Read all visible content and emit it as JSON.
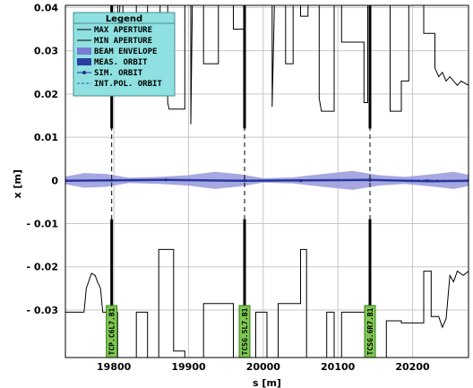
{
  "chart_data": {
    "type": "line",
    "xlabel": "s [m]",
    "ylabel": "x [m]",
    "xlim": [
      19735,
      20275
    ],
    "ylim": [
      -0.041,
      0.0405
    ],
    "x_ticks": [
      {
        "value": 19800,
        "label": "19800"
      },
      {
        "value": 19900,
        "label": "19900"
      },
      {
        "value": 20000,
        "label": "20000"
      },
      {
        "value": 20100,
        "label": "20100"
      },
      {
        "value": 20200,
        "label": "20200"
      }
    ],
    "y_ticks": [
      {
        "value": 0.04,
        "label": "0.04"
      },
      {
        "value": 0.03,
        "label": "0.03"
      },
      {
        "value": 0.02,
        "label": "0.02"
      },
      {
        "value": 0.01,
        "label": "0.01"
      },
      {
        "value": 0,
        "label": "0"
      },
      {
        "value": -0.01,
        "label": "- 0.01"
      },
      {
        "value": -0.02,
        "label": "- 0.02"
      },
      {
        "value": -0.03,
        "label": "- 0.03"
      }
    ],
    "grid": true,
    "legend": {
      "title": "Legend",
      "placement": "top-left",
      "entries": [
        {
          "label": "MAX APERTURE",
          "style": "line",
          "color": "#000000"
        },
        {
          "label": "MIN APERTURE",
          "style": "line",
          "color": "#000000"
        },
        {
          "label": "BEAM ENVELOPE",
          "style": "band",
          "color": "#7b7bd6"
        },
        {
          "label": "MEAS. ORBIT",
          "style": "box",
          "color": "#2b3fa0"
        },
        {
          "label": "SIM. ORBIT",
          "style": "marker",
          "color": "#1f2f8f"
        },
        {
          "label": "INT.POL. ORBIT",
          "style": "dashed",
          "color": "#3355bb"
        }
      ]
    },
    "colors": {
      "legend_bg": "#8fe0e0",
      "collimator": "#7ec850",
      "envelope": "#8a8ad8",
      "orbit": "#2b3fa0",
      "aperture": "#000000",
      "grid": "#c8c8c8"
    },
    "collimators": [
      {
        "s": 19797,
        "label": "TCP.C6L7.B1"
      },
      {
        "s": 19975,
        "label": "TCSG.5L7.B1"
      },
      {
        "s": 20143,
        "label": "TCSG.6R7.B1"
      }
    ],
    "max_aperture": [
      [
        19735,
        0.0405
      ],
      [
        19805,
        0.0405
      ],
      [
        19805,
        0.026
      ],
      [
        19808,
        0.0405
      ],
      [
        19812,
        0.0405
      ],
      [
        19812,
        0.03
      ],
      [
        19830,
        0.03
      ],
      [
        19830,
        0.0405
      ],
      [
        19845,
        0.0405
      ],
      [
        19845,
        0.03
      ],
      [
        19860,
        0.03
      ],
      [
        19860,
        0.022
      ],
      [
        19862,
        0.0405
      ],
      [
        19872,
        0.0405
      ],
      [
        19872,
        0.018
      ],
      [
        19874,
        0.0165
      ],
      [
        19895,
        0.0165
      ],
      [
        19895,
        0.0405
      ],
      [
        19903,
        0.0405
      ],
      [
        19903,
        0.013
      ],
      [
        19905,
        0.0405
      ],
      [
        19920,
        0.0405
      ],
      [
        19920,
        0.027
      ],
      [
        19940,
        0.027
      ],
      [
        19940,
        0.0405
      ],
      [
        19960,
        0.0405
      ],
      [
        19960,
        0.035
      ],
      [
        19975,
        0.035
      ],
      [
        19975,
        0.0405
      ],
      [
        20012,
        0.0405
      ],
      [
        20012,
        0.017
      ],
      [
        20015,
        0.0405
      ],
      [
        20030,
        0.0405
      ],
      [
        20030,
        0.027
      ],
      [
        20040,
        0.027
      ],
      [
        20040,
        0.0405
      ],
      [
        20050,
        0.0405
      ],
      [
        20050,
        0.038
      ],
      [
        20060,
        0.038
      ],
      [
        20060,
        0.0405
      ],
      [
        20075,
        0.0405
      ],
      [
        20075,
        0.019
      ],
      [
        20078,
        0.016
      ],
      [
        20095,
        0.016
      ],
      [
        20095,
        0.0405
      ],
      [
        20105,
        0.0405
      ],
      [
        20105,
        0.032
      ],
      [
        20135,
        0.032
      ],
      [
        20135,
        0.018
      ],
      [
        20140,
        0.018
      ],
      [
        20140,
        0.0405
      ],
      [
        20170,
        0.0405
      ],
      [
        20170,
        0.016
      ],
      [
        20185,
        0.016
      ],
      [
        20185,
        0.023
      ],
      [
        20195,
        0.023
      ],
      [
        20195,
        0.0405
      ],
      [
        20215,
        0.0405
      ],
      [
        20215,
        0.034
      ],
      [
        20230,
        0.034
      ],
      [
        20230,
        0.026
      ],
      [
        20235,
        0.024
      ],
      [
        20240,
        0.025
      ],
      [
        20245,
        0.023
      ],
      [
        20250,
        0.024
      ],
      [
        20260,
        0.022
      ],
      [
        20265,
        0.023
      ],
      [
        20275,
        0.022
      ]
    ],
    "min_aperture": [
      [
        19735,
        -0.0305
      ],
      [
        19760,
        -0.0305
      ],
      [
        19763,
        -0.025
      ],
      [
        19770,
        -0.0215
      ],
      [
        19775,
        -0.022
      ],
      [
        19778,
        -0.0235
      ],
      [
        19782,
        -0.025
      ],
      [
        19785,
        -0.0305
      ],
      [
        19805,
        -0.0305
      ],
      [
        19805,
        -0.041
      ],
      [
        19830,
        -0.041
      ],
      [
        19830,
        -0.0305
      ],
      [
        19845,
        -0.0305
      ],
      [
        19845,
        -0.041
      ],
      [
        19860,
        -0.041
      ],
      [
        19860,
        -0.016
      ],
      [
        19880,
        -0.016
      ],
      [
        19880,
        -0.0395
      ],
      [
        19895,
        -0.0395
      ],
      [
        19895,
        -0.041
      ],
      [
        19920,
        -0.041
      ],
      [
        19920,
        -0.0285
      ],
      [
        19960,
        -0.0285
      ],
      [
        19960,
        -0.041
      ],
      [
        19990,
        -0.041
      ],
      [
        19990,
        -0.0305
      ],
      [
        20005,
        -0.0305
      ],
      [
        20005,
        -0.041
      ],
      [
        20020,
        -0.041
      ],
      [
        20020,
        -0.0285
      ],
      [
        20050,
        -0.0285
      ],
      [
        20050,
        -0.016
      ],
      [
        20058,
        -0.016
      ],
      [
        20058,
        -0.041
      ],
      [
        20085,
        -0.041
      ],
      [
        20085,
        -0.0305
      ],
      [
        20095,
        -0.0305
      ],
      [
        20095,
        -0.041
      ],
      [
        20105,
        -0.041
      ],
      [
        20105,
        -0.0305
      ],
      [
        20140,
        -0.0305
      ],
      [
        20140,
        -0.041
      ],
      [
        20165,
        -0.041
      ],
      [
        20165,
        -0.0325
      ],
      [
        20185,
        -0.0325
      ],
      [
        20185,
        -0.033
      ],
      [
        20215,
        -0.033
      ],
      [
        20215,
        -0.021
      ],
      [
        20225,
        -0.021
      ],
      [
        20225,
        -0.0315
      ],
      [
        20235,
        -0.0315
      ],
      [
        20240,
        -0.034
      ],
      [
        20245,
        -0.032
      ],
      [
        20250,
        -0.022
      ],
      [
        20255,
        -0.0235
      ],
      [
        20260,
        -0.021
      ],
      [
        20268,
        -0.022
      ],
      [
        20275,
        -0.021
      ]
    ],
    "beam_envelope": [
      [
        19735,
        0.0009
      ],
      [
        19760,
        0.0017
      ],
      [
        19790,
        0.0015
      ],
      [
        19820,
        0.0006
      ],
      [
        19860,
        0.0008
      ],
      [
        19900,
        0.0012
      ],
      [
        19935,
        0.002
      ],
      [
        19970,
        0.0014
      ],
      [
        20000,
        0.0005
      ],
      [
        20040,
        0.0007
      ],
      [
        20080,
        0.0015
      ],
      [
        20120,
        0.0022
      ],
      [
        20155,
        0.0012
      ],
      [
        20190,
        0.0008
      ],
      [
        20230,
        0.0015
      ],
      [
        20255,
        0.002
      ],
      [
        20275,
        0.0013
      ]
    ],
    "measured_orbit": [
      [
        19735,
        -0.0001
      ],
      [
        19797,
        0.0
      ],
      [
        19870,
        0.0001
      ],
      [
        19975,
        -0.0001
      ],
      [
        20050,
        0.0
      ],
      [
        20143,
        0.0001
      ],
      [
        20220,
        -0.0002
      ],
      [
        20275,
        -0.0001
      ]
    ],
    "simulated_orbit": [
      [
        19735,
        0.0
      ],
      [
        19797,
        0.0
      ],
      [
        19870,
        0.0001
      ],
      [
        19975,
        0.0
      ],
      [
        20050,
        -0.0001
      ],
      [
        20143,
        0.0
      ],
      [
        20220,
        -0.0001
      ],
      [
        20275,
        0.0
      ]
    ],
    "interpolated_orbit": [
      [
        19735,
        0.0
      ],
      [
        19800,
        0.0001
      ],
      [
        19900,
        0.0
      ],
      [
        20000,
        -0.0001
      ],
      [
        20100,
        0.0
      ],
      [
        20200,
        0.0001
      ],
      [
        20275,
        0.0
      ]
    ]
  }
}
